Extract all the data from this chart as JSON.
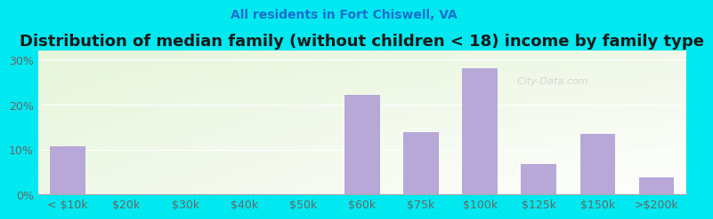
{
  "title": "Distribution of median family (without children < 18) income by family type",
  "subtitle": "All residents in Fort Chiswell, VA",
  "categories": [
    "< $10k",
    "$20k",
    "$30k",
    "$40k",
    "$50k",
    "$60k",
    "$75k",
    "$100k",
    "$125k",
    "$150k",
    ">$200k"
  ],
  "values": [
    10.7,
    0,
    0,
    0,
    0,
    22.2,
    13.8,
    28.0,
    6.8,
    13.4,
    3.8
  ],
  "bar_color": "#b8a8d8",
  "fig_bg_color": "#00e8f0",
  "title_color": "#1a1a1a",
  "subtitle_color": "#1a6ecc",
  "axis_color": "#666666",
  "grid_color": "#ffffff",
  "ytick_labels": [
    "0%",
    "10%",
    "20%",
    "30%"
  ],
  "ytick_values": [
    0,
    10,
    20,
    30
  ],
  "ylim": [
    0,
    32
  ],
  "title_fontsize": 13,
  "subtitle_fontsize": 10,
  "tick_fontsize": 9,
  "watermark_text": "City-Data.com",
  "watermark_color": "#cccccc"
}
